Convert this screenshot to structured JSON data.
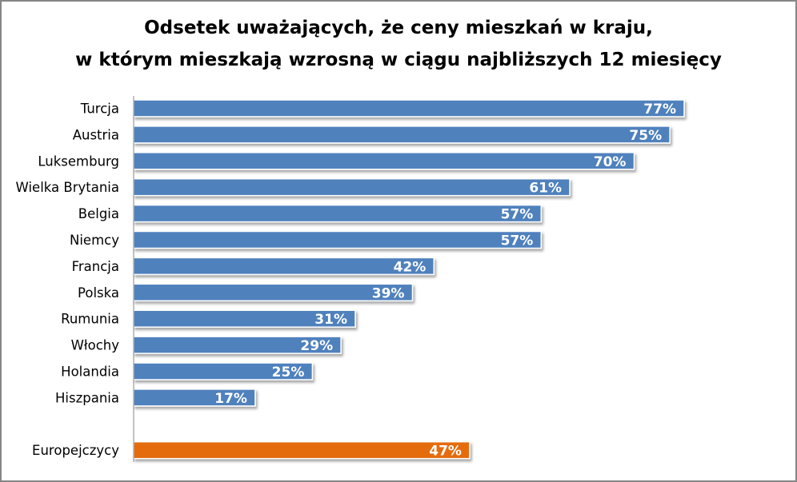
{
  "chart_data": {
    "type": "bar",
    "orientation": "horizontal",
    "title_lines": [
      "Odsetek uważających, że ceny mieszkań w kraju,",
      "w którym mieszkają wzrosną w ciągu najbliższych 12 miesięcy"
    ],
    "categories": [
      "Turcja",
      "Austria",
      "Luksemburg",
      "Wielka Brytania",
      "Belgia",
      "Niemcy",
      "Francja",
      "Polska",
      "Rumunia",
      "Włochy",
      "Holandia",
      "Hiszpania",
      "",
      "Europejczycy"
    ],
    "values": [
      77,
      75,
      70,
      61,
      57,
      57,
      42,
      39,
      31,
      29,
      25,
      17,
      null,
      47
    ],
    "data_labels": [
      "77%",
      "75%",
      "70%",
      "61%",
      "57%",
      "57%",
      "42%",
      "39%",
      "31%",
      "29%",
      "25%",
      "17%",
      "",
      "47%"
    ],
    "highlight_category": "Europejczycy",
    "colors": {
      "bar": "#4F81BD",
      "highlight": "#E46C0A",
      "label": "#FFFFFF"
    },
    "xlim": [
      0,
      100
    ],
    "grid": false
  }
}
